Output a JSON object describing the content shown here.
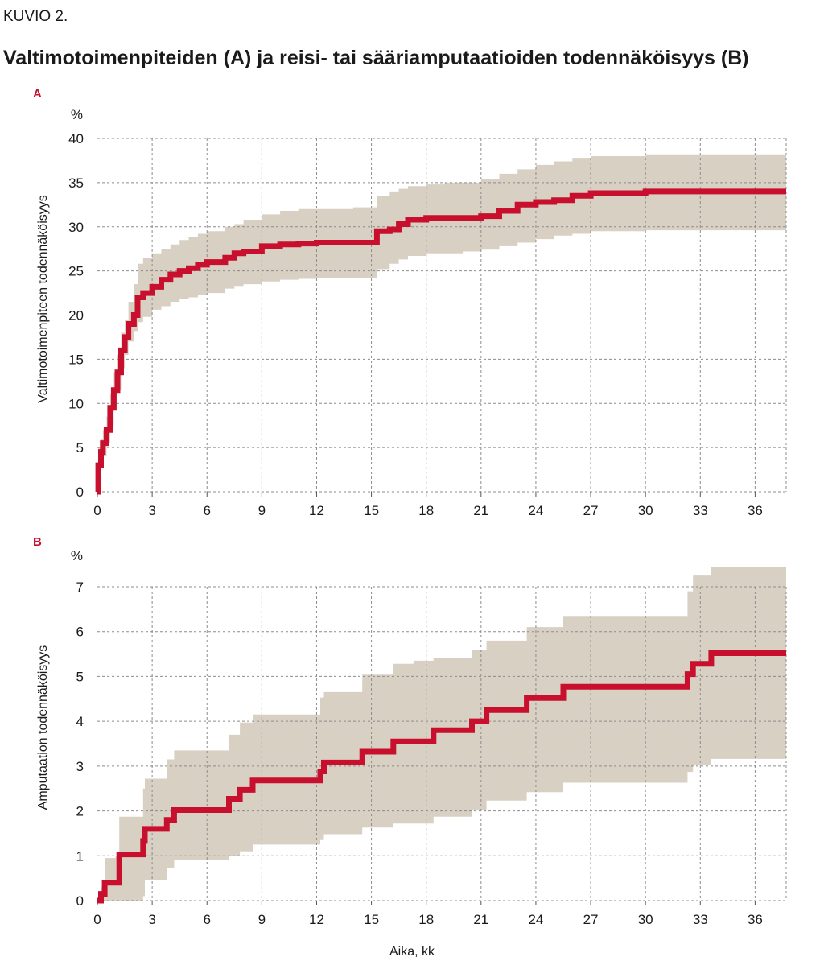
{
  "figure": {
    "label": "KUVIO 2.",
    "title": "Valtimotoimenpiteiden (A) ja reisi- tai sääriamputaatioiden todennäköisyys (B)"
  },
  "colors": {
    "line": "#c8102e",
    "band": "#d8d0c3",
    "grid": "#8c8c8c",
    "text": "#1a1a1a"
  },
  "chart_data": [
    {
      "type": "line",
      "panel": "A",
      "xlabel": "",
      "ylabel": "Valtimotoimenpiteen todennäköisyys",
      "unit": "%",
      "xlim": [
        0,
        37.7
      ],
      "ylim": [
        0,
        40
      ],
      "xticks": [
        0,
        3,
        6,
        9,
        12,
        15,
        18,
        21,
        24,
        27,
        30,
        33,
        36
      ],
      "yticks": [
        0,
        5,
        10,
        15,
        20,
        25,
        30,
        35,
        40
      ],
      "grid": true,
      "step": true,
      "x": [
        0,
        0.05,
        0.2,
        0.3,
        0.5,
        0.7,
        0.9,
        1.1,
        1.3,
        1.5,
        1.7,
        2.0,
        2.2,
        2.5,
        3.0,
        3.5,
        4.0,
        4.5,
        5.0,
        5.5,
        6.0,
        7.0,
        7.5,
        8.0,
        9.0,
        10,
        11,
        12,
        13,
        14,
        15,
        15.3,
        16,
        16.5,
        17,
        18,
        19,
        20,
        21,
        22,
        23,
        24,
        25,
        26,
        27,
        30,
        33,
        36,
        37.7
      ],
      "y": [
        0,
        3,
        4.5,
        5.5,
        7,
        9.5,
        11.5,
        13.5,
        16,
        17.5,
        19,
        20,
        22,
        22.5,
        23.2,
        24,
        24.6,
        25,
        25.3,
        25.7,
        26,
        26.5,
        27,
        27.2,
        27.8,
        28,
        28.1,
        28.2,
        28.2,
        28.2,
        28.2,
        29.5,
        29.7,
        30.3,
        30.8,
        31,
        31,
        31,
        31.2,
        31.8,
        32.5,
        32.8,
        33,
        33.5,
        33.8,
        34,
        34,
        34,
        34
      ],
      "lower": [
        0,
        0.5,
        3,
        4,
        5.5,
        7.5,
        9.5,
        11.5,
        14,
        15.5,
        17,
        18.2,
        19.2,
        19.8,
        20.6,
        21,
        21.5,
        21.8,
        22,
        22.3,
        22.5,
        23,
        23.3,
        23.5,
        23.8,
        24,
        24.1,
        24.2,
        24.2,
        24.2,
        24.2,
        25.2,
        25.8,
        26.3,
        26.7,
        27,
        27,
        27.2,
        27.4,
        27.8,
        28.2,
        28.6,
        29,
        29.2,
        29.5,
        29.6,
        29.6,
        29.6,
        29.6
      ],
      "upper": [
        0,
        5,
        6,
        7,
        8.5,
        11,
        13.5,
        15.5,
        18,
        19.5,
        21.5,
        23.5,
        25.8,
        26.5,
        27,
        27.5,
        28,
        28.5,
        28.8,
        29.2,
        29.5,
        30,
        30.3,
        30.8,
        31.4,
        31.8,
        32,
        32,
        32,
        32.2,
        32.2,
        33.5,
        34,
        34.3,
        34.6,
        34.8,
        35,
        35,
        35.4,
        36,
        36.5,
        37,
        37.4,
        37.8,
        38,
        38.2,
        38.2,
        38.2,
        38.2
      ]
    },
    {
      "type": "line",
      "panel": "B",
      "xlabel": "Aika, kk",
      "ylabel": "Amputaation todennäköisyys",
      "unit": "%",
      "xlim": [
        0,
        37.7
      ],
      "ylim": [
        0,
        7
      ],
      "xticks": [
        0,
        3,
        6,
        9,
        12,
        15,
        18,
        21,
        24,
        27,
        30,
        33,
        36
      ],
      "yticks": [
        0,
        1,
        2,
        3,
        4,
        5,
        6,
        7
      ],
      "grid": true,
      "step": true,
      "x": [
        0,
        0.2,
        0.4,
        1.0,
        1.2,
        2.5,
        2.6,
        3.8,
        4.2,
        7.2,
        7.8,
        8.5,
        12.2,
        12.4,
        14.5,
        16.2,
        17.3,
        18.4,
        20.5,
        21.3,
        23.5,
        25.5,
        32.3,
        32.6,
        33.6,
        37.7
      ],
      "y": [
        0,
        0.15,
        0.4,
        0.4,
        1.03,
        1.33,
        1.6,
        1.8,
        2.02,
        2.27,
        2.47,
        2.68,
        2.88,
        3.08,
        3.32,
        3.55,
        3.55,
        3.8,
        4.0,
        4.25,
        4.52,
        4.77,
        5.05,
        5.28,
        5.52,
        5.52
      ],
      "lower": [
        0,
        0,
        0,
        0,
        0,
        0.1,
        0.45,
        0.72,
        0.9,
        1.0,
        1.1,
        1.25,
        1.35,
        1.48,
        1.63,
        1.72,
        1.72,
        1.87,
        2.02,
        2.23,
        2.42,
        2.63,
        2.87,
        3.03,
        3.16,
        3.37
      ],
      "upper": [
        0,
        0.3,
        0.95,
        1.0,
        1.87,
        2.5,
        2.72,
        3.15,
        3.35,
        3.7,
        3.97,
        4.15,
        4.53,
        4.65,
        5.04,
        5.28,
        5.35,
        5.42,
        5.6,
        5.8,
        6.1,
        6.35,
        6.9,
        7.25,
        7.43,
        7.43
      ]
    }
  ]
}
